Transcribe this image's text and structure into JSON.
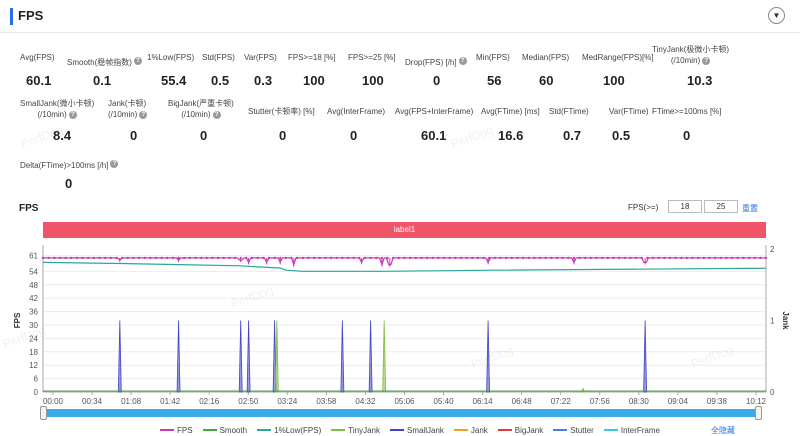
{
  "header": {
    "title": "FPS",
    "collapse_icon": "▼"
  },
  "metrics": [
    {
      "label": "Avg(FPS)",
      "value": "60.1",
      "help": false
    },
    {
      "label": "Smooth(稳帧指数)",
      "value": "0.1",
      "help": true
    },
    {
      "label": "1%Low(FPS)",
      "value": "55.4",
      "help": false
    },
    {
      "label": "Std(FPS)",
      "value": "0.5",
      "help": false
    },
    {
      "label": "Var(FPS)",
      "value": "0.3",
      "help": false
    },
    {
      "label": "FPS>=18 [%]",
      "value": "100",
      "help": false
    },
    {
      "label": "FPS>=25 [%]",
      "value": "100",
      "help": false
    },
    {
      "label": "Drop(FPS) [/h]",
      "value": "0",
      "help": true
    },
    {
      "label": "Min(FPS)",
      "value": "56",
      "help": false
    },
    {
      "label": "Median(FPS)",
      "value": "60",
      "help": false
    },
    {
      "label": "MedRange(FPS)[%]",
      "value": "100",
      "help": false
    },
    {
      "label": "TinyJank(极微小卡顿)",
      "label2": "(/10min)",
      "value": "10.3",
      "help": true
    },
    {
      "label": "SmallJank(微小卡顿)",
      "label2": "(/10min)",
      "value": "8.4",
      "help": true
    },
    {
      "label": "Jank(卡顿)",
      "label2": "(/10min)",
      "value": "0",
      "help": true
    },
    {
      "label": "BigJank(严重卡顿)",
      "label2": "(/10min)",
      "value": "0",
      "help": true
    },
    {
      "label": "Stutter(卡顿率) [%]",
      "value": "0",
      "help": false
    },
    {
      "label": "Avg(InterFrame)",
      "value": "0",
      "help": false
    },
    {
      "label": "Avg(FPS+InterFrame)",
      "value": "60.1",
      "help": false
    },
    {
      "label": "Avg(FTime) [ms]",
      "value": "16.6",
      "help": false
    },
    {
      "label": "Std(FTime)",
      "value": "0.7",
      "help": false
    },
    {
      "label": "Var(FTime)",
      "value": "0.5",
      "help": false
    },
    {
      "label": "FTime>=100ms [%]",
      "value": "0",
      "help": false
    },
    {
      "label": "Delta(FTime)>100ms [/h]",
      "value": "0",
      "help": true
    }
  ],
  "chart_section": {
    "title": "FPS",
    "threshold_label": "FPS(>=)",
    "threshold_low": "18",
    "threshold_high": "25",
    "reset_label": "重置",
    "band_label": "label1",
    "hide_all": "全隐藏",
    "watermark": "PerfDog"
  },
  "chart_data": {
    "type": "line",
    "ylabel": "FPS",
    "y2label": "Jank",
    "yticks": [
      0,
      6,
      12,
      18,
      24,
      30,
      36,
      42,
      48,
      54,
      61
    ],
    "ylim": [
      0,
      64
    ],
    "y2ticks": [
      0,
      1,
      2
    ],
    "y2lim": [
      0,
      2
    ],
    "xlim_seconds": [
      0,
      640
    ],
    "xticks": [
      "00:00",
      "00:34",
      "01:08",
      "01:42",
      "02:16",
      "02:50",
      "03:24",
      "03:58",
      "04:32",
      "05:06",
      "05:40",
      "06:14",
      "06:48",
      "07:22",
      "07:56",
      "08:30",
      "09:04",
      "09:38",
      "10:12"
    ],
    "series": [
      {
        "name": "FPS",
        "color": "#c63ab6",
        "level": 60,
        "dips": [
          [
            68,
            59
          ],
          [
            120,
            59
          ],
          [
            175,
            59
          ],
          [
            182,
            58
          ],
          [
            198,
            58
          ],
          [
            210,
            58
          ],
          [
            222,
            57
          ],
          [
            282,
            58
          ],
          [
            300,
            57
          ],
          [
            307,
            57
          ],
          [
            394,
            58
          ],
          [
            470,
            58
          ],
          [
            533,
            58
          ]
        ]
      },
      {
        "name": "Smooth",
        "color": "#45a83a"
      },
      {
        "name": "1%Low(FPS)",
        "color": "#2aa79a",
        "points": [
          [
            0,
            58
          ],
          [
            68,
            57.5
          ],
          [
            120,
            57
          ],
          [
            175,
            56.5
          ],
          [
            190,
            56
          ],
          [
            210,
            55.5
          ],
          [
            215,
            54.5
          ],
          [
            230,
            54
          ],
          [
            300,
            54
          ],
          [
            400,
            54.5
          ],
          [
            640,
            55.4
          ]
        ]
      },
      {
        "name": "TinyJank",
        "color": "#7bbf3a",
        "spikes": [
          [
            207,
            1
          ],
          [
            302,
            1
          ],
          [
            478,
            0.05
          ]
        ]
      },
      {
        "name": "SmallJank",
        "color": "#4343c8",
        "spikes": [
          [
            68,
            1
          ],
          [
            120,
            1
          ],
          [
            175,
            1
          ],
          [
            182,
            1
          ],
          [
            205,
            1
          ],
          [
            265,
            1
          ],
          [
            290,
            1
          ],
          [
            394,
            1
          ],
          [
            533,
            1
          ]
        ]
      },
      {
        "name": "Jank",
        "color": "#f0a020"
      },
      {
        "name": "BigJank",
        "color": "#e03a3a"
      },
      {
        "name": "Stutter",
        "color": "#4a7fe0"
      },
      {
        "name": "InterFrame",
        "color": "#3fc7e3"
      }
    ]
  }
}
